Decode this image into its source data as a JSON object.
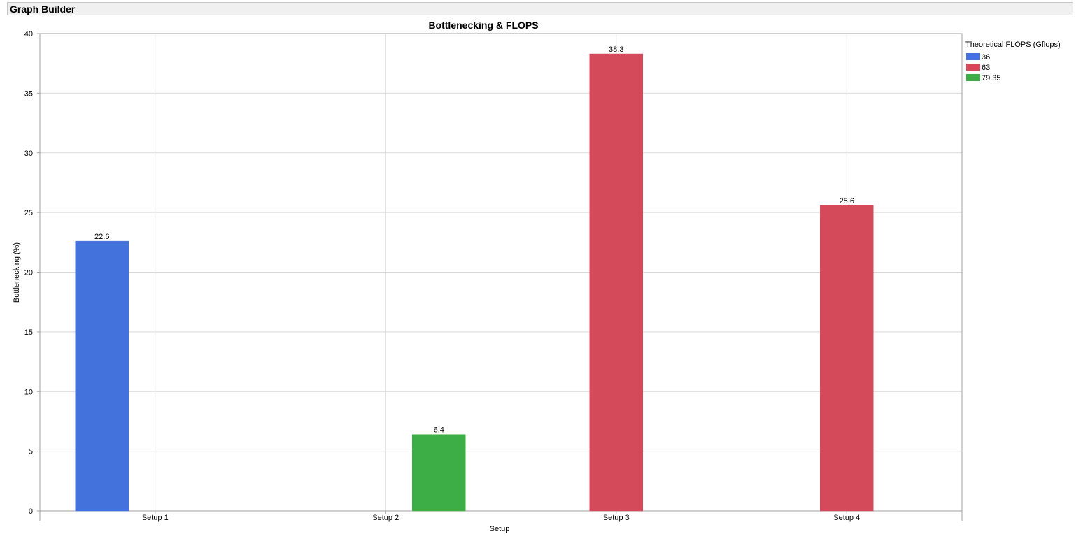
{
  "window": {
    "title": "Graph Builder"
  },
  "colors": {
    "series_36": "#4472dd",
    "series_63": "#d44a5a",
    "series_79_35": "#3cae45",
    "grid": "#d9d9d9",
    "axis": "#a0a0a0"
  },
  "chart_data": {
    "type": "bar",
    "title": "Bottlenecking & FLOPS",
    "xlabel": "Setup",
    "ylabel": "Bottlenecking (%)",
    "ylim": [
      0,
      40
    ],
    "yticks": [
      0,
      5,
      10,
      15,
      20,
      25,
      30,
      35,
      40
    ],
    "categories": [
      "Setup 1",
      "Setup 2",
      "Setup 3",
      "Setup 4"
    ],
    "grid": true,
    "legend_position": "right",
    "legend_title": "Theoretical FLOPS (Gflops)",
    "legend": [
      {
        "label": "36",
        "color": "#4472dd"
      },
      {
        "label": "63",
        "color": "#d44a5a"
      },
      {
        "label": "79.35",
        "color": "#3cae45"
      }
    ],
    "bars": [
      {
        "category": "Setup 1",
        "series": "36",
        "value": 22.6,
        "label": "22.6",
        "slot": "left"
      },
      {
        "category": "Setup 2",
        "series": "79.35",
        "value": 6.4,
        "label": "6.4",
        "slot": "right"
      },
      {
        "category": "Setup 3",
        "series": "63",
        "value": 38.3,
        "label": "38.3",
        "slot": "center"
      },
      {
        "category": "Setup 4",
        "series": "63",
        "value": 25.6,
        "label": "25.6",
        "slot": "center"
      }
    ]
  }
}
